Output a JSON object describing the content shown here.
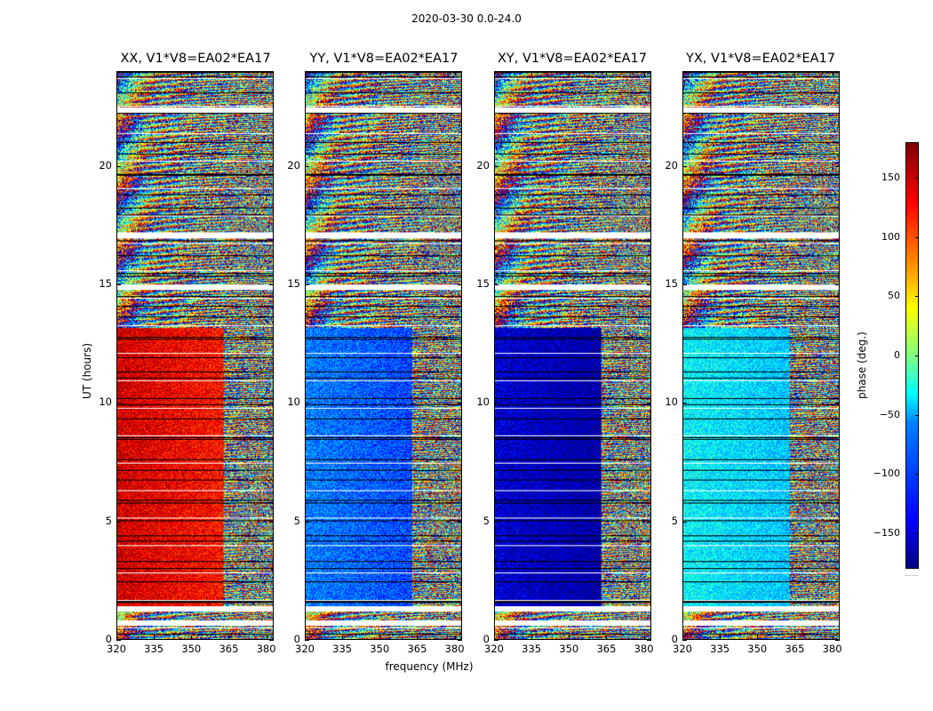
{
  "chart_data": {
    "type": "heatmap",
    "suptitle": "2020-03-30 0.0-24.0",
    "panels": [
      {
        "title": "XX, V1*V8=EA02*EA17",
        "pol": "XX",
        "bias": 150
      },
      {
        "title": "YY, V1*V8=EA02*EA17",
        "pol": "YY",
        "bias": -90
      },
      {
        "title": "XY, V1*V8=EA02*EA17",
        "pol": "XY",
        "bias": -150
      },
      {
        "title": "YX, V1*V8=EA02*EA17",
        "pol": "YX",
        "bias": -45
      }
    ],
    "xlabel": "frequency (MHz)",
    "ylabel": "UT (hours)",
    "xlim": [
      320,
      383
    ],
    "ylim": [
      0,
      24
    ],
    "xticks": [
      "320",
      "335",
      "350",
      "365",
      "380"
    ],
    "xtick_values": [
      320,
      335,
      350,
      365,
      380
    ],
    "yticks": [
      "0",
      "5",
      "10",
      "15",
      "20"
    ],
    "ytick_values": [
      0,
      5,
      10,
      15,
      20
    ],
    "colorbar": {
      "label": "phase (deg.)",
      "range": [
        -180,
        180
      ],
      "ticks": [
        "150",
        "100",
        "50",
        "0",
        "−50",
        "−100",
        "−150"
      ],
      "tick_values": [
        150,
        100,
        50,
        0,
        -50,
        -100,
        -150
      ],
      "colormap": "jet"
    },
    "coherent_band_end_mhz": 363,
    "gap_hours": [
      0.7,
      1.3,
      14.9,
      17.1,
      22.4
    ]
  }
}
